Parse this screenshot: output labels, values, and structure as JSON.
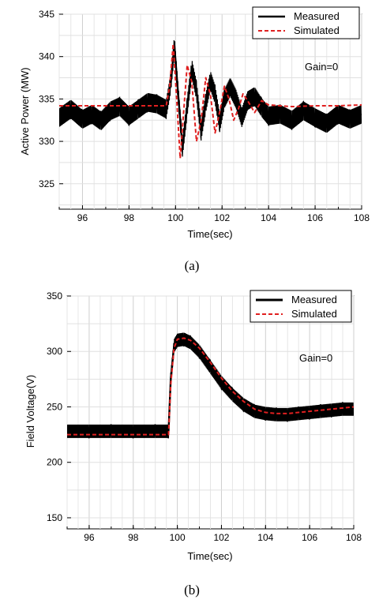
{
  "chart_data": [
    {
      "type": "line",
      "caption": "(a)",
      "xlabel": "Time(sec)",
      "ylabel": "Active Power (MW)",
      "xlim": [
        95,
        108
      ],
      "ylim": [
        322,
        345
      ],
      "xticks": [
        96,
        98,
        100,
        102,
        104,
        106,
        108
      ],
      "yticks": [
        325,
        330,
        335,
        340,
        345
      ],
      "grid": true,
      "legend_position": "top-right",
      "annotation": "Gain=0",
      "series": [
        {
          "name": "Measured",
          "color": "#000000",
          "style": "solid-band",
          "band": 1.1,
          "x": [
            95.0,
            95.5,
            96.0,
            96.4,
            96.8,
            97.2,
            97.6,
            98.0,
            98.4,
            98.8,
            99.2,
            99.6,
            99.8,
            99.95,
            100.1,
            100.3,
            100.5,
            100.7,
            100.9,
            101.1,
            101.3,
            101.5,
            101.7,
            101.9,
            102.1,
            102.35,
            102.6,
            102.85,
            103.1,
            103.4,
            103.7,
            104.0,
            104.5,
            105.0,
            105.5,
            106.0,
            106.5,
            107.0,
            107.5,
            108.0
          ],
          "y": [
            332.8,
            333.8,
            332.6,
            333.2,
            332.4,
            333.6,
            334.1,
            333.0,
            333.8,
            334.6,
            334.4,
            333.8,
            337.0,
            341.3,
            336.0,
            329.3,
            334.0,
            338.6,
            336.0,
            331.2,
            334.5,
            337.2,
            335.5,
            332.2,
            335.0,
            336.4,
            335.0,
            332.8,
            334.8,
            335.3,
            334.0,
            333.0,
            333.2,
            332.5,
            333.6,
            332.8,
            332.1,
            333.2,
            332.6,
            333.2
          ]
        },
        {
          "name": "Simulated",
          "color": "#e02020",
          "style": "dashed",
          "x": [
            95.0,
            99.6,
            99.75,
            99.9,
            100.05,
            100.2,
            100.35,
            100.5,
            100.7,
            100.9,
            101.1,
            101.3,
            101.5,
            101.7,
            101.9,
            102.1,
            102.3,
            102.5,
            102.7,
            102.9,
            103.1,
            103.4,
            103.7,
            104.0,
            104.5,
            105.0,
            106.0,
            107.0,
            108.0
          ],
          "y": [
            334.2,
            334.2,
            336.5,
            341.5,
            335.0,
            328.0,
            333.5,
            339.0,
            337.0,
            330.0,
            332.5,
            337.5,
            335.5,
            331.0,
            333.5,
            336.5,
            335.0,
            332.5,
            333.8,
            335.6,
            334.8,
            333.4,
            334.8,
            334.3,
            334.2,
            334.1,
            334.2,
            334.2,
            334.3
          ]
        }
      ]
    },
    {
      "type": "line",
      "caption": "(b)",
      "xlabel": "Time(sec)",
      "ylabel": "Field Voltage(V)",
      "xlim": [
        95,
        108
      ],
      "ylim": [
        140,
        350
      ],
      "xticks": [
        96,
        98,
        100,
        102,
        104,
        106,
        108
      ],
      "yticks": [
        150,
        200,
        250,
        300,
        350
      ],
      "grid": true,
      "legend_position": "top-right",
      "annotation": "Gain=0",
      "series": [
        {
          "name": "Measured",
          "color": "#000000",
          "style": "solid-band",
          "band": 6,
          "x": [
            95.0,
            96.0,
            97.0,
            98.0,
            99.0,
            99.6,
            99.7,
            99.85,
            100.0,
            100.3,
            100.6,
            101.0,
            101.5,
            102.0,
            102.5,
            103.0,
            103.5,
            104.0,
            104.5,
            105.0,
            105.5,
            106.0,
            106.5,
            107.0,
            107.5,
            108.0
          ],
          "y": [
            228,
            228,
            228,
            228,
            228,
            228,
            275,
            305,
            310,
            311,
            308,
            300,
            286,
            272,
            261,
            252,
            246,
            244,
            243,
            243,
            244,
            245,
            246,
            247,
            248,
            248
          ]
        },
        {
          "name": "Simulated",
          "color": "#e02020",
          "style": "dashed",
          "x": [
            95.0,
            96.0,
            97.0,
            98.0,
            99.0,
            99.6,
            99.7,
            99.85,
            100.0,
            100.3,
            100.6,
            101.0,
            101.5,
            102.0,
            102.5,
            103.0,
            103.5,
            104.0,
            104.5,
            105.0,
            105.5,
            106.0,
            106.5,
            107.0,
            107.5,
            108.0
          ],
          "y": [
            225,
            225,
            225,
            225,
            225,
            225,
            270,
            303,
            311,
            312,
            310,
            303,
            290,
            276,
            264,
            255,
            248,
            245,
            244,
            244,
            245,
            246,
            247,
            248,
            249,
            250
          ]
        }
      ]
    }
  ]
}
